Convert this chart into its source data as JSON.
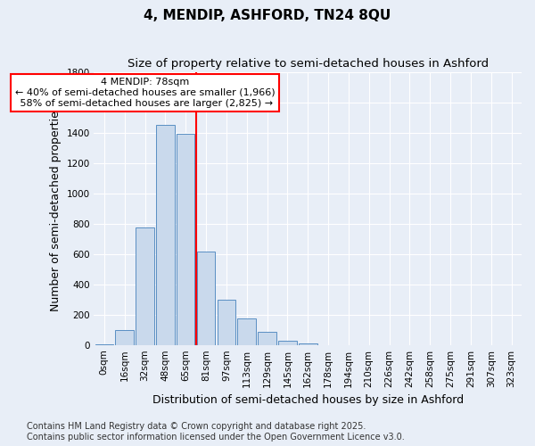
{
  "title_line1": "4, MENDIP, ASHFORD, TN24 8QU",
  "title_line2": "Size of property relative to semi-detached houses in Ashford",
  "xlabel": "Distribution of semi-detached houses by size in Ashford",
  "ylabel": "Number of semi-detached properties",
  "categories": [
    "0sqm",
    "16sqm",
    "32sqm",
    "48sqm",
    "65sqm",
    "81sqm",
    "97sqm",
    "113sqm",
    "129sqm",
    "145sqm",
    "162sqm",
    "178sqm",
    "194sqm",
    "210sqm",
    "226sqm",
    "242sqm",
    "258sqm",
    "275sqm",
    "291sqm",
    "307sqm",
    "323sqm"
  ],
  "values": [
    5,
    100,
    775,
    1450,
    1390,
    615,
    300,
    175,
    85,
    30,
    10,
    0,
    0,
    0,
    0,
    0,
    0,
    0,
    0,
    0,
    0
  ],
  "bar_color": "#c9d9ec",
  "bar_edge_color": "#5a8fc3",
  "annotation_text": "4 MENDIP: 78sqm\n← 40% of semi-detached houses are smaller (1,966)\n 58% of semi-detached houses are larger (2,825) →",
  "ylim": [
    0,
    1800
  ],
  "yticks": [
    0,
    200,
    400,
    600,
    800,
    1000,
    1200,
    1400,
    1600,
    1800
  ],
  "footnote1": "Contains HM Land Registry data © Crown copyright and database right 2025.",
  "footnote2": "Contains public sector information licensed under the Open Government Licence v3.0.",
  "background_color": "#e8eef7",
  "plot_bg_color": "#e8eef7",
  "grid_color": "#ffffff",
  "title_fontsize": 11,
  "subtitle_fontsize": 9.5,
  "axis_label_fontsize": 9,
  "tick_fontsize": 7.5,
  "annotation_fontsize": 8,
  "footnote_fontsize": 7,
  "red_line_bin_index": 5
}
